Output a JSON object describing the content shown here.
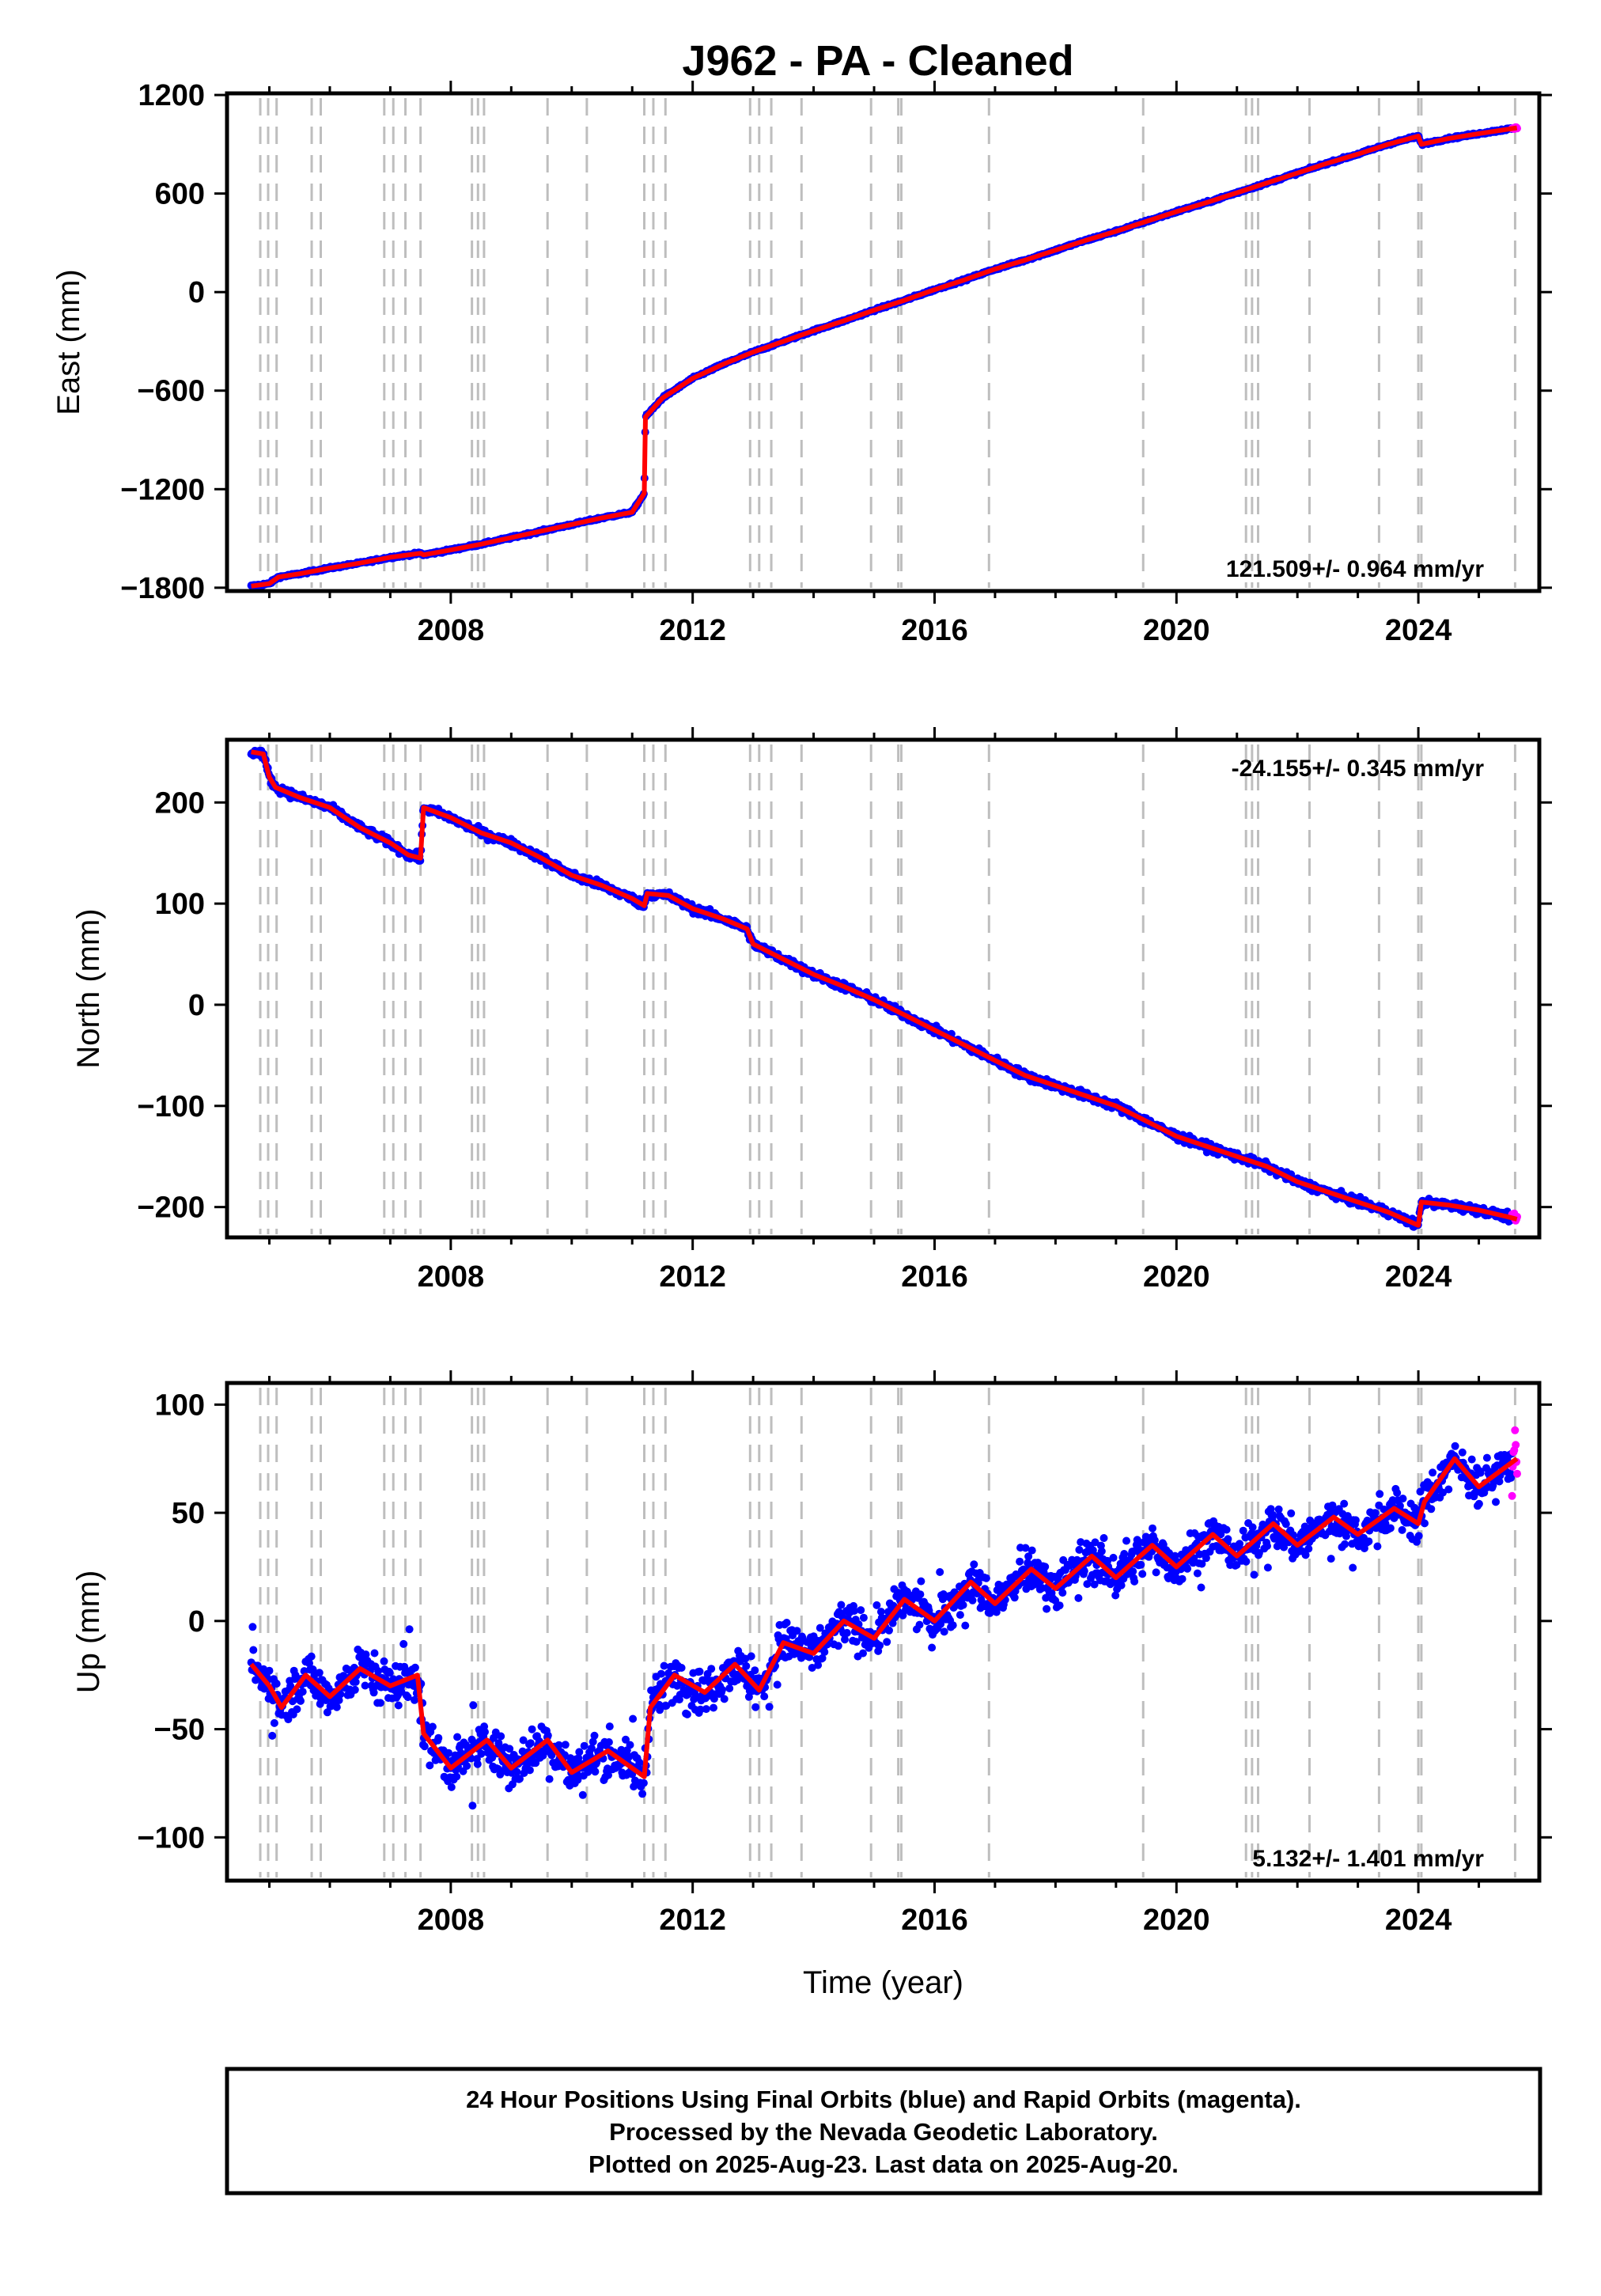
{
  "title": "J962  - PA - Cleaned",
  "footer": {
    "line1": "24 Hour Positions Using Final Orbits (blue) and Rapid Orbits (magenta).",
    "line2": "Processed by the Nevada Geodetic Laboratory.",
    "line3": "Plotted on 2025-Aug-23. Last data on 2025-Aug-20."
  },
  "colors": {
    "final_orbits": "#0000ff",
    "rapid_orbits": "#ff00ff",
    "model_fit": "#ff0000",
    "event_lines": "#bebebe",
    "frame": "#000000"
  },
  "chart_data": [
    {
      "type": "scatter",
      "id": "east",
      "ylabel": "East (mm)",
      "xlabel": "",
      "xlim": [
        2004.3,
        2026.0
      ],
      "ylim": [
        -1820,
        1210
      ],
      "x_ticks": [
        2008,
        2012,
        2016,
        2020,
        2024
      ],
      "x_tick_labels": [
        "2008",
        "2012",
        "2016",
        "2020",
        "2024"
      ],
      "y_ticks": [
        1200,
        600,
        0,
        -600,
        -1200,
        -1800
      ],
      "y_tick_labels": [
        "1200",
        "600",
        "0",
        "−600",
        "−1200",
        "−1800"
      ],
      "rate_label": "121.509+/- 0.964 mm/yr",
      "rate_position": "bottom-right",
      "event_lines": [
        2004.85,
        2004.98,
        2005.12,
        2005.7,
        2005.85,
        2006.9,
        2007.05,
        2007.25,
        2007.5,
        2008.35,
        2008.45,
        2008.55,
        2009.6,
        2010.25,
        2011.2,
        2011.35,
        2011.55,
        2012.95,
        2013.1,
        2013.3,
        2013.8,
        2014.95,
        2015.4,
        2015.45,
        2016.9,
        2019.45,
        2021.15,
        2021.25,
        2021.35,
        2022.2,
        2023.35,
        2024.0,
        2024.05,
        2025.6
      ],
      "series": [
        {
          "points": [
            [
              2004.7,
              -1790
            ],
            [
              2005.0,
              -1775
            ],
            [
              2005.15,
              -1735
            ],
            [
              2005.5,
              -1715
            ],
            [
              2006.0,
              -1680
            ],
            [
              2006.5,
              -1650
            ],
            [
              2007.0,
              -1615
            ],
            [
              2007.5,
              -1590
            ],
            [
              2007.55,
              -1600
            ],
            [
              2008.0,
              -1570
            ],
            [
              2008.5,
              -1535
            ],
            [
              2009.0,
              -1495
            ],
            [
              2009.5,
              -1455
            ],
            [
              2010.0,
              -1415
            ],
            [
              2010.5,
              -1375
            ],
            [
              2011.0,
              -1340
            ],
            [
              2011.2,
              -1225
            ],
            [
              2011.22,
              -760
            ],
            [
              2011.5,
              -645
            ],
            [
              2012.0,
              -525
            ],
            [
              2012.5,
              -440
            ],
            [
              2013.0,
              -365
            ],
            [
              2013.5,
              -300
            ],
            [
              2014.0,
              -235
            ],
            [
              2014.5,
              -175
            ],
            [
              2015.0,
              -110
            ],
            [
              2015.5,
              -50
            ],
            [
              2016.0,
              15
            ],
            [
              2016.5,
              75
            ],
            [
              2017.0,
              140
            ],
            [
              2017.5,
              195
            ],
            [
              2018.0,
              255
            ],
            [
              2018.5,
              315
            ],
            [
              2019.0,
              370
            ],
            [
              2019.5,
              430
            ],
            [
              2020.0,
              490
            ],
            [
              2020.5,
              545
            ],
            [
              2021.0,
              605
            ],
            [
              2021.5,
              665
            ],
            [
              2022.0,
              725
            ],
            [
              2022.5,
              785
            ],
            [
              2023.0,
              840
            ],
            [
              2023.5,
              900
            ],
            [
              2024.0,
              950
            ],
            [
              2024.05,
              900
            ],
            [
              2024.5,
              935
            ],
            [
              2025.0,
              965
            ],
            [
              2025.63,
              1000
            ]
          ]
        }
      ]
    },
    {
      "type": "scatter",
      "id": "north",
      "ylabel": "North (mm)",
      "xlabel": "",
      "xlim": [
        2004.3,
        2026.0
      ],
      "ylim": [
        -230,
        262
      ],
      "x_ticks": [
        2008,
        2012,
        2016,
        2020,
        2024
      ],
      "x_tick_labels": [
        "2008",
        "2012",
        "2016",
        "2020",
        "2024"
      ],
      "y_ticks": [
        200,
        100,
        0,
        -100,
        -200
      ],
      "y_tick_labels": [
        "200",
        "100",
        "0",
        "−100",
        "−200"
      ],
      "rate_label": "-24.155+/- 0.345 mm/yr",
      "rate_position": "top-right",
      "event_lines": [
        2004.85,
        2004.98,
        2005.12,
        2005.7,
        2005.85,
        2006.9,
        2007.05,
        2007.25,
        2007.5,
        2008.35,
        2008.45,
        2008.55,
        2009.6,
        2010.25,
        2011.2,
        2011.35,
        2011.55,
        2012.95,
        2013.1,
        2013.3,
        2013.8,
        2014.95,
        2015.4,
        2015.45,
        2016.9,
        2019.45,
        2021.15,
        2021.25,
        2021.35,
        2022.2,
        2023.35,
        2024.0,
        2024.05,
        2025.6
      ],
      "series": [
        {
          "points": [
            [
              2004.7,
              250
            ],
            [
              2004.9,
              248
            ],
            [
              2005.0,
              225
            ],
            [
              2005.1,
              215
            ],
            [
              2005.5,
              205
            ],
            [
              2006.0,
              195
            ],
            [
              2006.5,
              175
            ],
            [
              2007.0,
              160
            ],
            [
              2007.3,
              148
            ],
            [
              2007.5,
              145
            ],
            [
              2007.55,
              195
            ],
            [
              2008.0,
              185
            ],
            [
              2008.5,
              170
            ],
            [
              2009.0,
              160
            ],
            [
              2009.5,
              145
            ],
            [
              2010.0,
              128
            ],
            [
              2010.5,
              118
            ],
            [
              2011.0,
              105
            ],
            [
              2011.2,
              98
            ],
            [
              2011.25,
              110
            ],
            [
              2011.6,
              108
            ],
            [
              2012.0,
              95
            ],
            [
              2012.5,
              85
            ],
            [
              2012.9,
              75
            ],
            [
              2013.0,
              60
            ],
            [
              2013.5,
              45
            ],
            [
              2014.0,
              30
            ],
            [
              2014.5,
              18
            ],
            [
              2015.0,
              5
            ],
            [
              2015.5,
              -10
            ],
            [
              2016.0,
              -25
            ],
            [
              2016.5,
              -40
            ],
            [
              2017.0,
              -55
            ],
            [
              2017.5,
              -70
            ],
            [
              2018.0,
              -80
            ],
            [
              2018.5,
              -90
            ],
            [
              2019.0,
              -100
            ],
            [
              2019.5,
              -115
            ],
            [
              2020.0,
              -130
            ],
            [
              2020.5,
              -140
            ],
            [
              2021.0,
              -150
            ],
            [
              2021.5,
              -160
            ],
            [
              2022.0,
              -175
            ],
            [
              2022.5,
              -185
            ],
            [
              2023.0,
              -195
            ],
            [
              2023.5,
              -205
            ],
            [
              2024.0,
              -218
            ],
            [
              2024.05,
              -195
            ],
            [
              2024.5,
              -198
            ],
            [
              2025.0,
              -203
            ],
            [
              2025.5,
              -210
            ],
            [
              2025.63,
              -212
            ]
          ]
        }
      ]
    },
    {
      "type": "scatter",
      "id": "up",
      "ylabel": "Up (mm)",
      "xlabel": "Time (year)",
      "xlim": [
        2004.3,
        2026.0
      ],
      "ylim": [
        -120,
        110
      ],
      "x_ticks": [
        2008,
        2012,
        2016,
        2020,
        2024
      ],
      "x_tick_labels": [
        "2008",
        "2012",
        "2016",
        "2020",
        "2024"
      ],
      "y_ticks": [
        100,
        50,
        0,
        -50,
        -100
      ],
      "y_tick_labels": [
        "100",
        "50",
        "0",
        "−50",
        "−100"
      ],
      "rate_label": "5.132+/- 1.401 mm/yr",
      "rate_position": "bottom-right",
      "event_lines": [
        2004.85,
        2004.98,
        2005.12,
        2005.7,
        2005.85,
        2006.9,
        2007.05,
        2007.25,
        2007.5,
        2008.35,
        2008.45,
        2008.55,
        2009.6,
        2010.25,
        2011.2,
        2011.35,
        2011.55,
        2012.95,
        2013.1,
        2013.3,
        2013.8,
        2014.95,
        2015.4,
        2015.45,
        2016.9,
        2019.45,
        2021.15,
        2021.25,
        2021.35,
        2022.2,
        2023.35,
        2024.0,
        2024.05,
        2025.6
      ],
      "series": [
        {
          "points": [
            [
              2004.7,
              -20
            ],
            [
              2005.0,
              -30
            ],
            [
              2005.2,
              -40
            ],
            [
              2005.6,
              -25
            ],
            [
              2006.0,
              -35
            ],
            [
              2006.5,
              -22
            ],
            [
              2007.0,
              -30
            ],
            [
              2007.45,
              -25
            ],
            [
              2007.55,
              -52
            ],
            [
              2008.0,
              -68
            ],
            [
              2008.6,
              -55
            ],
            [
              2009.0,
              -68
            ],
            [
              2009.6,
              -55
            ],
            [
              2010.0,
              -70
            ],
            [
              2010.6,
              -60
            ],
            [
              2011.2,
              -72
            ],
            [
              2011.3,
              -40
            ],
            [
              2011.7,
              -25
            ],
            [
              2012.2,
              -33
            ],
            [
              2012.7,
              -20
            ],
            [
              2013.1,
              -32
            ],
            [
              2013.5,
              -10
            ],
            [
              2014.0,
              -15
            ],
            [
              2014.5,
              0
            ],
            [
              2015.0,
              -8
            ],
            [
              2015.5,
              10
            ],
            [
              2016.0,
              0
            ],
            [
              2016.6,
              18
            ],
            [
              2017.0,
              8
            ],
            [
              2017.6,
              24
            ],
            [
              2018.0,
              15
            ],
            [
              2018.6,
              30
            ],
            [
              2019.0,
              20
            ],
            [
              2019.6,
              35
            ],
            [
              2020.0,
              25
            ],
            [
              2020.6,
              40
            ],
            [
              2021.0,
              30
            ],
            [
              2021.6,
              45
            ],
            [
              2022.0,
              35
            ],
            [
              2022.6,
              48
            ],
            [
              2023.0,
              40
            ],
            [
              2023.6,
              52
            ],
            [
              2024.0,
              45
            ],
            [
              2024.1,
              55
            ],
            [
              2024.6,
              75
            ],
            [
              2025.0,
              62
            ],
            [
              2025.63,
              75
            ]
          ]
        }
      ]
    }
  ]
}
